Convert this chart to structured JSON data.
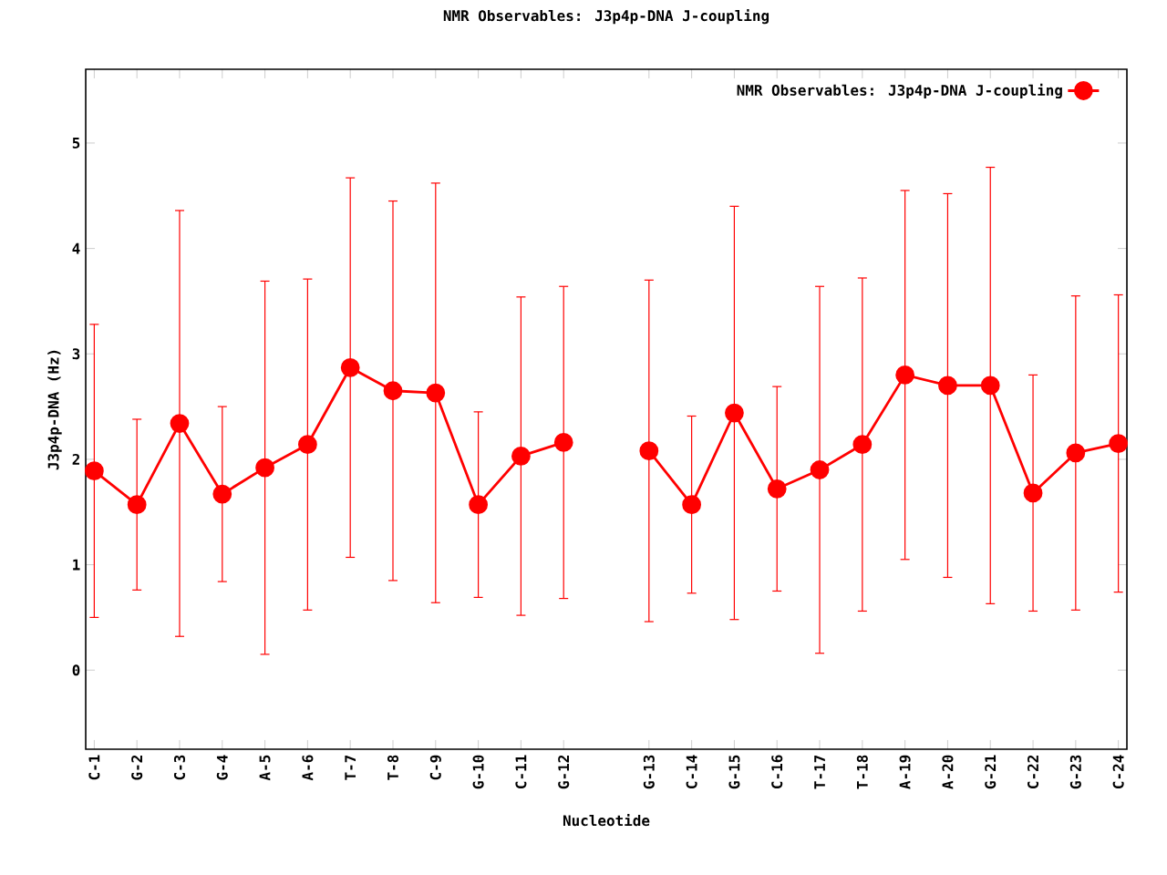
{
  "chart_data": {
    "type": "line",
    "title": "NMR Observables: J3p4p-DNA J-coupling",
    "xlabel": "Nucleotide",
    "ylabel": "J3p4p-DNA (Hz)",
    "categories": [
      "C-1",
      "G-2",
      "C-3",
      "G-4",
      "A-5",
      "A-6",
      "T-7",
      "T-8",
      "C-9",
      "G-10",
      "C-11",
      "G-12",
      null,
      "G-13",
      "C-14",
      "G-15",
      "C-16",
      "T-17",
      "T-18",
      "A-19",
      "A-20",
      "G-21",
      "C-22",
      "G-23",
      "C-24"
    ],
    "series": [
      {
        "name": "NMR Observables: J3p4p-DNA J-coupling",
        "color": "#ff0000",
        "values": [
          1.89,
          1.57,
          2.34,
          1.67,
          1.92,
          2.14,
          2.87,
          2.65,
          2.63,
          1.57,
          2.03,
          2.16,
          null,
          2.08,
          1.57,
          2.44,
          1.72,
          1.9,
          2.14,
          2.8,
          2.7,
          2.7,
          1.68,
          2.06,
          2.15
        ],
        "errors": [
          1.39,
          0.81,
          2.02,
          0.83,
          1.77,
          1.57,
          1.8,
          1.8,
          1.99,
          0.88,
          1.51,
          1.48,
          null,
          1.62,
          0.84,
          1.96,
          0.97,
          1.74,
          1.58,
          1.75,
          1.82,
          2.07,
          1.12,
          1.49,
          1.41
        ]
      }
    ],
    "ylim": [
      -0.75,
      5.7
    ],
    "yticks": [
      0,
      1,
      2,
      3,
      4,
      5
    ],
    "grid": false,
    "legend": "top right",
    "marker": "circle",
    "line_style": "solid"
  }
}
